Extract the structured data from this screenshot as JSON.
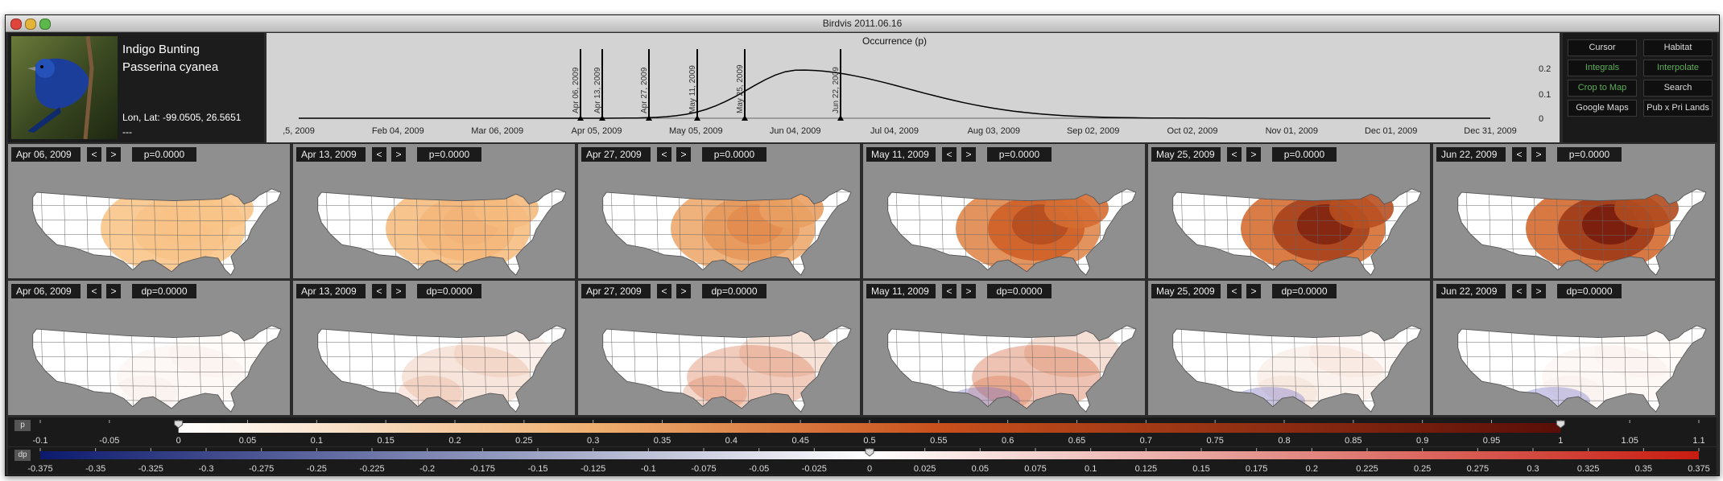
{
  "window": {
    "title": "Birdvis   2011.06.16"
  },
  "bird": {
    "common_name": "Indigo Bunting",
    "scientific_name": "Passerina cyanea",
    "location": "Lon, Lat: -99.0505, 26.5651",
    "location_extra": "---"
  },
  "timeline": {
    "title": "Occurrence (p)",
    "x_ticks": [
      ",5, 2009",
      "Feb 04, 2009",
      "Mar 06, 2009",
      "Apr 05, 2009",
      "May 05, 2009",
      "Jun 04, 2009",
      "Jul 04, 2009",
      "Aug 03, 2009",
      "Sep 02, 2009",
      "Oct 02, 2009",
      "Nov 01, 2009",
      "Dec 01, 2009",
      "Dec 31, 2009"
    ],
    "y_ticks": [
      "0.2",
      "0.1",
      "0"
    ],
    "markers": [
      "Apr 06, 2009",
      "Apr 13, 2009",
      "Apr 27, 2009",
      "May 11, 2009",
      "May 25, 2009",
      "Jun 22, 2009"
    ]
  },
  "buttons": [
    {
      "label": "Cursor",
      "color": "#dddddd"
    },
    {
      "label": "Habitat",
      "color": "#dddddd"
    },
    {
      "label": "Integrals",
      "color": "#5fae5a"
    },
    {
      "label": "Interpolate",
      "color": "#5fae5a"
    },
    {
      "label": "Crop to Map",
      "color": "#5fae5a"
    },
    {
      "label": "Search",
      "color": "#dddddd"
    },
    {
      "label": "Google Maps",
      "color": "#dddddd"
    },
    {
      "label": "Pub x Pri Lands",
      "color": "#dddddd"
    }
  ],
  "nav": {
    "prev": "<",
    "next": ">"
  },
  "rows": [
    {
      "cells": [
        {
          "date": "Apr 06, 2009",
          "value": "p=0.0000",
          "intensity": 0.03
        },
        {
          "date": "Apr 13, 2009",
          "value": "p=0.0000",
          "intensity": 0.1
        },
        {
          "date": "Apr 27, 2009",
          "value": "p=0.0000",
          "intensity": 0.3
        },
        {
          "date": "May 11, 2009",
          "value": "p=0.0000",
          "intensity": 0.65
        },
        {
          "date": "May 25, 2009",
          "value": "p=0.0000",
          "intensity": 0.9
        },
        {
          "date": "Jun 22, 2009",
          "value": "p=0.0000",
          "intensity": 0.95
        }
      ]
    },
    {
      "cells": [
        {
          "date": "Apr 06, 2009",
          "value": "dp=0.0000",
          "intensity": 0.05
        },
        {
          "date": "Apr 13, 2009",
          "value": "dp=0.0000",
          "intensity": 0.2
        },
        {
          "date": "Apr 27, 2009",
          "value": "dp=0.0000",
          "intensity": 0.35
        },
        {
          "date": "May 11, 2009",
          "value": "dp=0.0000",
          "intensity": 0.4
        },
        {
          "date": "May 25, 2009",
          "value": "dp=0.0000",
          "intensity": 0.1
        },
        {
          "date": "Jun 22, 2009",
          "value": "dp=0.0000",
          "intensity": 0.05
        }
      ]
    }
  ],
  "colorbar_p": {
    "label": "p",
    "ticks": [
      "-0.1",
      "-0.05",
      "0",
      "0.05",
      "0.1",
      "0.15",
      "0.2",
      "0.25",
      "0.3",
      "0.35",
      "0.4",
      "0.45",
      "0.5",
      "0.55",
      "0.6",
      "0.65",
      "0.7",
      "0.75",
      "0.8",
      "0.85",
      "0.9",
      "0.95",
      "1",
      "1.05",
      "1.1"
    ]
  },
  "colorbar_dp": {
    "label": "dp",
    "ticks": [
      "-0.375",
      "-0.35",
      "-0.325",
      "-0.3",
      "-0.275",
      "-0.25",
      "-0.225",
      "-0.2",
      "-0.175",
      "-0.15",
      "-0.125",
      "-0.1",
      "-0.075",
      "-0.05",
      "-0.025",
      "0",
      "0.025",
      "0.05",
      "0.075",
      "0.1",
      "0.125",
      "0.15",
      "0.175",
      "0.2",
      "0.225",
      "0.25",
      "0.275",
      "0.3",
      "0.325",
      "0.35",
      "0.375"
    ]
  }
}
